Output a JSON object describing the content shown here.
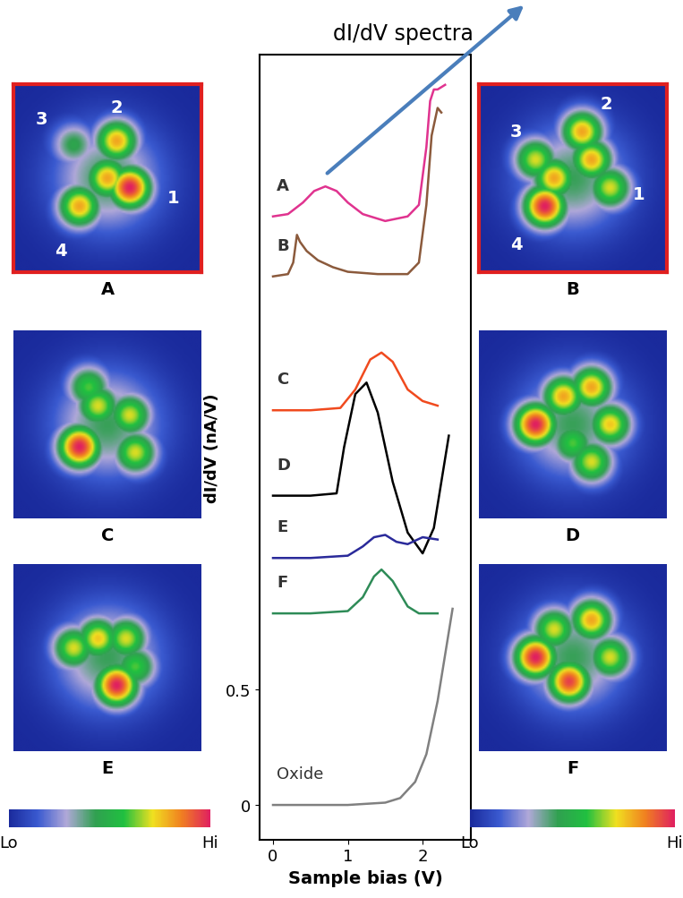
{
  "chart_data": {
    "type": "line",
    "annotation": "dI/dV spectra",
    "x_label": "Sample bias (V)",
    "y_label": "dI/dV (nA/V)",
    "xlim": [
      -0.18,
      2.65
    ],
    "ylim": [
      -0.15,
      3.25
    ],
    "xticks": [
      0,
      1,
      2
    ],
    "yticks": [
      0,
      0.5
    ],
    "series": [
      {
        "name": "A",
        "color": "#e0338f",
        "x": [
          0,
          0.2,
          0.4,
          0.55,
          0.7,
          0.85,
          1.0,
          1.2,
          1.5,
          1.8,
          1.95,
          2.05,
          2.1,
          2.15,
          2.2,
          2.3
        ],
        "values": [
          2.55,
          2.56,
          2.61,
          2.66,
          2.68,
          2.66,
          2.61,
          2.56,
          2.53,
          2.55,
          2.6,
          2.85,
          3.05,
          3.1,
          3.1,
          3.12
        ]
      },
      {
        "name": "B",
        "color": "#8b5a3c",
        "x": [
          0,
          0.2,
          0.27,
          0.32,
          0.36,
          0.45,
          0.6,
          0.8,
          1.0,
          1.4,
          1.8,
          1.95,
          2.05,
          2.12,
          2.2,
          2.25
        ],
        "values": [
          2.29,
          2.3,
          2.35,
          2.47,
          2.44,
          2.4,
          2.36,
          2.33,
          2.31,
          2.3,
          2.3,
          2.35,
          2.6,
          2.9,
          3.02,
          3.0
        ]
      },
      {
        "name": "C",
        "color": "#f04a1e",
        "x": [
          0,
          0.5,
          0.9,
          1.1,
          1.3,
          1.45,
          1.6,
          1.8,
          2.0,
          2.2
        ],
        "values": [
          1.71,
          1.71,
          1.72,
          1.8,
          1.93,
          1.96,
          1.92,
          1.8,
          1.75,
          1.73
        ]
      },
      {
        "name": "D",
        "color": "#000000",
        "x": [
          0,
          0.5,
          0.85,
          0.95,
          1.1,
          1.25,
          1.4,
          1.6,
          1.8,
          2.0,
          2.15,
          2.35
        ],
        "values": [
          1.34,
          1.34,
          1.35,
          1.55,
          1.78,
          1.83,
          1.7,
          1.4,
          1.18,
          1.09,
          1.2,
          1.6
        ]
      },
      {
        "name": "E",
        "color": "#2a2a9a",
        "x": [
          0,
          0.5,
          1.0,
          1.2,
          1.35,
          1.5,
          1.65,
          1.8,
          2.0,
          2.2
        ],
        "values": [
          1.07,
          1.07,
          1.08,
          1.12,
          1.16,
          1.17,
          1.14,
          1.13,
          1.16,
          1.15
        ]
      },
      {
        "name": "F",
        "color": "#2e8b57",
        "x": [
          0,
          0.5,
          1.0,
          1.2,
          1.35,
          1.45,
          1.6,
          1.8,
          1.95,
          2.2
        ],
        "values": [
          0.83,
          0.83,
          0.84,
          0.9,
          0.99,
          1.02,
          0.97,
          0.86,
          0.83,
          0.83
        ]
      },
      {
        "name": "Oxide",
        "color": "#808080",
        "x": [
          0,
          0.5,
          1.0,
          1.5,
          1.7,
          1.9,
          2.05,
          2.2,
          2.3,
          2.4
        ],
        "values": [
          0,
          0,
          0,
          0.01,
          0.03,
          0.1,
          0.22,
          0.45,
          0.65,
          0.85
        ]
      }
    ]
  },
  "images": [
    {
      "label": "A",
      "frame_color": "#e02020",
      "site_labels": [
        {
          "text": "1",
          "x": 0.85,
          "y": 0.4
        },
        {
          "text": "2",
          "x": 0.55,
          "y": 0.88
        },
        {
          "text": "3",
          "x": 0.15,
          "y": 0.82
        },
        {
          "text": "4",
          "x": 0.25,
          "y": 0.12
        }
      ],
      "lobes": [
        [
          0.62,
          0.45,
          1.0
        ],
        [
          0.5,
          0.5,
          0.8
        ],
        [
          0.55,
          0.7,
          0.8
        ],
        [
          0.35,
          0.35,
          0.8
        ],
        [
          0.32,
          0.68,
          0.45
        ]
      ]
    },
    {
      "label": "B",
      "frame_color": "#e02020",
      "site_labels": [
        {
          "text": "2",
          "x": 0.68,
          "y": 0.9
        },
        {
          "text": "3",
          "x": 0.2,
          "y": 0.75
        },
        {
          "text": "1",
          "x": 0.85,
          "y": 0.42
        },
        {
          "text": "4",
          "x": 0.2,
          "y": 0.15
        }
      ],
      "lobes": [
        [
          0.35,
          0.35,
          1.0
        ],
        [
          0.4,
          0.5,
          0.8
        ],
        [
          0.6,
          0.6,
          0.8
        ],
        [
          0.55,
          0.75,
          0.8
        ],
        [
          0.3,
          0.6,
          0.7
        ],
        [
          0.7,
          0.45,
          0.7
        ]
      ]
    },
    {
      "label": "C",
      "site_labels": [],
      "lobes": [
        [
          0.35,
          0.38,
          1.0
        ],
        [
          0.45,
          0.6,
          0.7
        ],
        [
          0.62,
          0.55,
          0.7
        ],
        [
          0.65,
          0.35,
          0.7
        ],
        [
          0.4,
          0.7,
          0.6
        ]
      ]
    },
    {
      "label": "D",
      "site_labels": [],
      "lobes": [
        [
          0.3,
          0.5,
          1.0
        ],
        [
          0.45,
          0.65,
          0.8
        ],
        [
          0.6,
          0.7,
          0.8
        ],
        [
          0.7,
          0.5,
          0.75
        ],
        [
          0.5,
          0.4,
          0.6
        ],
        [
          0.6,
          0.3,
          0.7
        ]
      ]
    },
    {
      "label": "E",
      "site_labels": [],
      "lobes": [
        [
          0.55,
          0.35,
          1.0
        ],
        [
          0.45,
          0.6,
          0.75
        ],
        [
          0.32,
          0.55,
          0.7
        ],
        [
          0.6,
          0.6,
          0.7
        ],
        [
          0.65,
          0.45,
          0.6
        ]
      ]
    },
    {
      "label": "F",
      "site_labels": [],
      "lobes": [
        [
          0.3,
          0.5,
          1.0
        ],
        [
          0.48,
          0.37,
          0.95
        ],
        [
          0.6,
          0.7,
          0.8
        ],
        [
          0.7,
          0.5,
          0.7
        ],
        [
          0.4,
          0.65,
          0.7
        ]
      ]
    }
  ],
  "colorbars": [
    {
      "range": [
        0,
        1
      ],
      "ticks": [
        {
          "value": 0,
          "label": "Lo"
        },
        {
          "value": 1,
          "label": "Hi"
        }
      ]
    },
    {
      "range": [
        0,
        1
      ],
      "ticks": [
        {
          "value": 0,
          "label": "Lo"
        },
        {
          "value": 1,
          "label": "Hi"
        }
      ]
    }
  ]
}
